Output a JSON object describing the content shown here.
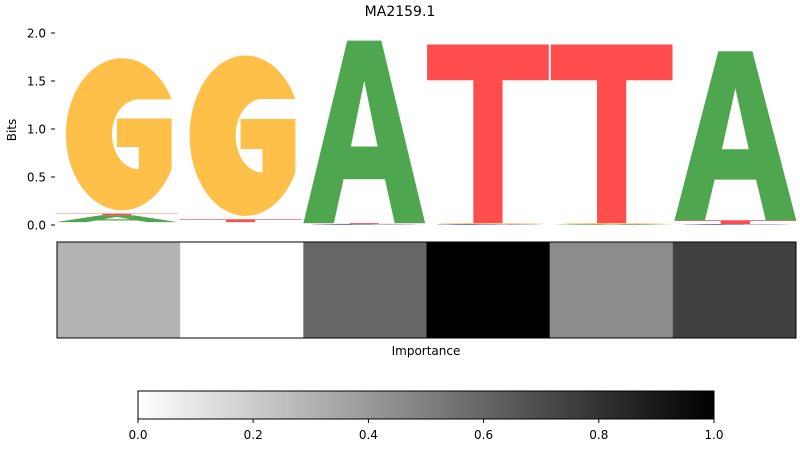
{
  "chart_data": [
    {
      "type": "sequence-logo",
      "title": "MA2159.1",
      "ylabel": "Bits",
      "ylim": [
        0,
        2.0
      ],
      "yticks": [
        "0.0",
        "0.5",
        "1.0",
        "1.5",
        "2.0"
      ],
      "colors": {
        "A": "#4ea64e",
        "C": "#5a5ad6",
        "G": "#ffc04a",
        "T": "#ff4c4c"
      },
      "positions": [
        {
          "letters": [
            {
              "base": "A",
              "height": 0.07
            },
            {
              "base": "T",
              "height": 0.02
            },
            {
              "base": "G",
              "height": 1.65
            }
          ],
          "stack_base": 0.03
        },
        {
          "letters": [
            {
              "base": "T",
              "height": 0.03
            },
            {
              "base": "G",
              "height": 1.74
            }
          ],
          "stack_base": 0.03
        },
        {
          "letters": [
            {
              "base": "C",
              "height": 0.01
            },
            {
              "base": "T",
              "height": 0.01
            },
            {
              "base": "A",
              "height": 1.9
            }
          ],
          "stack_base": 0.0
        },
        {
          "letters": [
            {
              "base": "C",
              "height": 0.01
            },
            {
              "base": "G",
              "height": 0.01
            },
            {
              "base": "T",
              "height": 1.86
            }
          ],
          "stack_base": 0.0
        },
        {
          "letters": [
            {
              "base": "A",
              "height": 0.01
            },
            {
              "base": "G",
              "height": 0.01
            },
            {
              "base": "T",
              "height": 1.86
            }
          ],
          "stack_base": 0.0
        },
        {
          "letters": [
            {
              "base": "C",
              "height": 0.01
            },
            {
              "base": "T",
              "height": 0.04
            },
            {
              "base": "A",
              "height": 1.76
            }
          ],
          "stack_base": 0.0
        }
      ]
    },
    {
      "type": "heatmap",
      "xlabel": "Importance",
      "values": [
        0.3,
        0.0,
        0.6,
        1.0,
        0.45,
        0.75
      ]
    },
    {
      "type": "colorbar",
      "range": [
        0.0,
        1.0
      ],
      "ticks": [
        "0.0",
        "0.2",
        "0.4",
        "0.6",
        "0.8",
        "1.0"
      ],
      "colormap": "greys"
    }
  ]
}
